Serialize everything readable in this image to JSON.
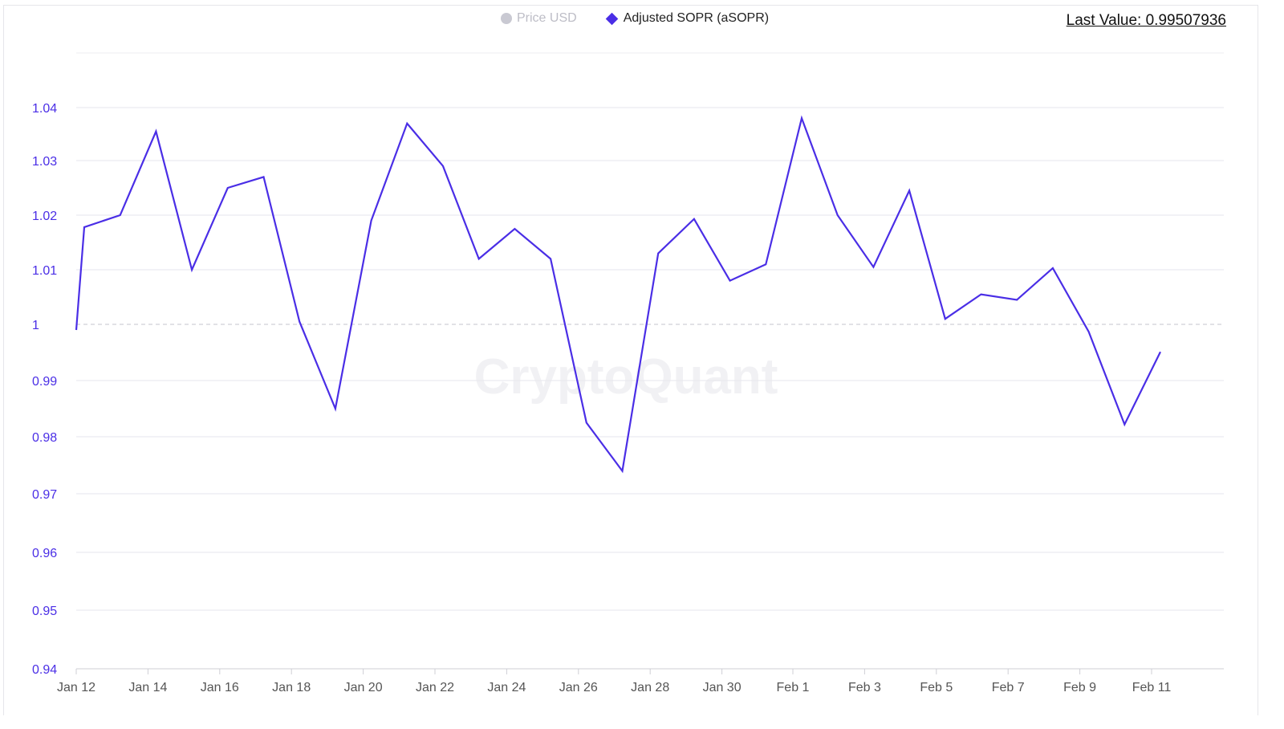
{
  "legend": {
    "price_label": "Price USD",
    "sopr_label": "Adjusted SOPR (aSOPR)"
  },
  "last_value": "Last Value: 0.99507936",
  "watermark": "CryptoQuant",
  "colors": {
    "line": "#4a2ee6",
    "price_disabled": "#c9c9d2"
  },
  "chart_data": {
    "type": "line",
    "title": "",
    "xlabel": "",
    "ylabel": "",
    "ylim": [
      0.94,
      1.04
    ],
    "y_ticks": [
      "1.04",
      "1.03",
      "1.02",
      "1.01",
      "1",
      "0.99",
      "0.98",
      "0.97",
      "0.96",
      "0.95",
      "0.94"
    ],
    "x_ticks": [
      "Jan 12",
      "Jan 14",
      "Jan 16",
      "Jan 18",
      "Jan 20",
      "Jan 22",
      "Jan 24",
      "Jan 26",
      "Jan 28",
      "Jan 30",
      "Feb 1",
      "Feb 3",
      "Feb 5",
      "Feb 7",
      "Feb 9",
      "Feb 11"
    ],
    "reference_line": 1,
    "series": [
      {
        "name": "Adjusted SOPR (aSOPR)",
        "x": [
          "Jan 12",
          "Jan 13",
          "Jan 14",
          "Jan 15",
          "Jan 16",
          "Jan 17",
          "Jan 18",
          "Jan 19",
          "Jan 20",
          "Jan 21",
          "Jan 22",
          "Jan 23",
          "Jan 24",
          "Jan 25",
          "Jan 26",
          "Jan 27",
          "Jan 28",
          "Jan 29",
          "Jan 30",
          "Jan 31",
          "Feb 1",
          "Feb 2",
          "Feb 3",
          "Feb 4",
          "Feb 5",
          "Feb 6",
          "Feb 7",
          "Feb 8",
          "Feb 9",
          "Feb 10",
          "Feb 11"
        ],
        "values": [
          1.0178,
          1.02,
          1.0355,
          1.01,
          1.025,
          1.027,
          1.0005,
          0.985,
          1.019,
          1.037,
          1.029,
          1.012,
          1.0175,
          1.012,
          0.9825,
          0.974,
          1.013,
          1.0193,
          1.008,
          1.011,
          1.038,
          1.02,
          1.0105,
          1.0245,
          1.001,
          1.0055,
          1.0045,
          1.0103,
          0.9987,
          0.9822,
          0.9951
        ]
      }
    ]
  }
}
